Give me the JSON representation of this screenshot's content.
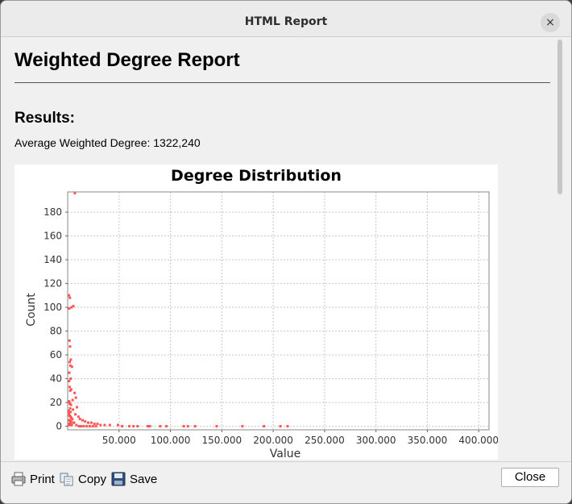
{
  "window": {
    "title": "HTML Report",
    "close_glyph": "×"
  },
  "report": {
    "title": "Weighted Degree Report",
    "results_heading": "Results:",
    "average_line": "Average Weighted Degree: 1322,240"
  },
  "footer": {
    "print_label": "Print",
    "copy_label": "Copy",
    "save_label": "Save",
    "close_label": "Close"
  },
  "colors": {
    "point": "#ff5555",
    "grid": "#c8c8c8",
    "plot_border": "#888888"
  },
  "chart_data": {
    "type": "scatter",
    "title": "Degree Distribution",
    "xlabel": "Value",
    "ylabel": "Count",
    "xlim": [
      0,
      410000
    ],
    "ylim": [
      -3,
      197
    ],
    "xticks": [
      50000,
      100000,
      150000,
      200000,
      250000,
      300000,
      350000,
      400000
    ],
    "xtick_labels": [
      "50.000",
      "100.000",
      "150.000",
      "200.000",
      "250.000",
      "300.000",
      "350.000",
      "400.000"
    ],
    "yticks": [
      0,
      20,
      40,
      60,
      80,
      100,
      120,
      140,
      160,
      180
    ],
    "ytick_labels": [
      "0",
      "20",
      "40",
      "60",
      "80",
      "100",
      "120",
      "140",
      "160",
      "180"
    ],
    "grid": true,
    "series": [
      {
        "x": [
          7000,
          1200,
          2200,
          5500,
          3800,
          1500,
          1800,
          2300,
          3000,
          2000,
          2600,
          4200,
          1600,
          2900,
          1400,
          1900,
          3400,
          2500,
          6800,
          8000,
          4800,
          1300,
          1700,
          2100,
          3200,
          9000,
          2400,
          5200,
          1100,
          2700,
          7500,
          10500,
          12000,
          14500,
          17000,
          20000,
          23000,
          26000,
          29000,
          32000,
          36000,
          41000,
          49000,
          53000,
          60000,
          64000,
          68000,
          78000,
          80000,
          90000,
          96000,
          113000,
          117000,
          124000,
          145000,
          170000,
          191000,
          207000,
          214000,
          1200,
          1600,
          2100,
          2800,
          3500,
          4500,
          1400,
          1900,
          2600,
          3300,
          5800,
          6200,
          1300,
          2000,
          3100,
          1500,
          2200,
          4000,
          8500,
          11000,
          13000,
          15500,
          18500,
          21500,
          24500,
          27500
        ],
        "y": [
          196,
          110,
          108,
          101,
          100,
          99,
          72,
          67,
          56,
          54,
          51,
          50,
          45,
          40,
          38,
          33,
          31,
          30,
          28,
          24,
          22,
          21,
          20,
          19,
          18,
          16,
          15,
          14,
          13,
          12,
          10,
          8,
          6,
          5,
          4,
          3,
          3,
          2,
          2,
          1,
          1,
          1,
          1,
          0,
          0,
          0,
          0,
          0,
          0,
          0,
          0,
          0,
          0,
          0,
          0,
          0,
          0,
          0,
          0,
          11,
          9,
          9,
          8,
          7,
          6,
          5,
          5,
          4,
          4,
          3,
          3,
          2,
          2,
          2,
          1,
          1,
          1,
          1,
          0,
          0,
          0,
          0,
          0,
          0,
          0
        ]
      }
    ]
  }
}
